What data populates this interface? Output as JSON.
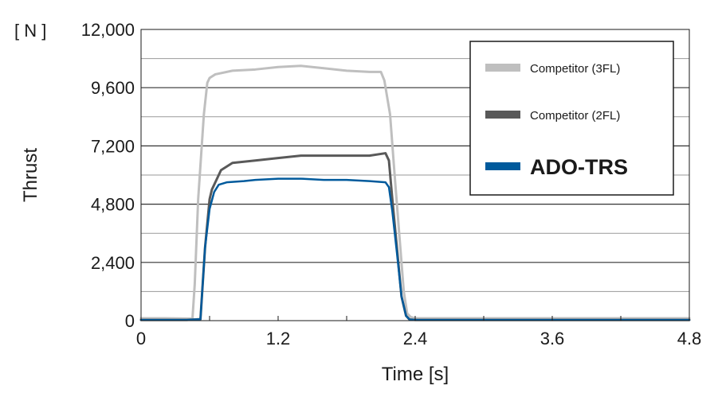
{
  "chart_data": {
    "type": "line",
    "unit_label": "[ N ]",
    "xlabel": "Time [s]",
    "ylabel": "Thrust",
    "xlim": [
      0,
      4.8
    ],
    "ylim": [
      0,
      12000
    ],
    "x_ticks": [
      0,
      1.2,
      2.4,
      3.6,
      4.8
    ],
    "x_tick_labels": [
      "0",
      "1.2",
      "2.4",
      "3.6",
      "4.8"
    ],
    "y_ticks": [
      0,
      2400,
      4800,
      7200,
      9600,
      12000
    ],
    "y_tick_labels": [
      "0",
      "2,400",
      "4,800",
      "7,200",
      "9,600",
      "12,000"
    ],
    "grid": true,
    "legend_position": "top-right",
    "series": [
      {
        "name": "Competitor (3FL)",
        "color": "#bfbfbf",
        "x": [
          0,
          0.2,
          0.45,
          0.47,
          0.5,
          0.55,
          0.58,
          0.6,
          0.65,
          0.8,
          1.0,
          1.2,
          1.4,
          1.6,
          1.8,
          2.0,
          2.1,
          2.13,
          2.18,
          2.22,
          2.27,
          2.3,
          2.33,
          2.36,
          2.4,
          3.0,
          3.6,
          4.2,
          4.8
        ],
        "y": [
          100,
          100,
          80,
          1500,
          5000,
          8500,
          9800,
          10000,
          10150,
          10300,
          10350,
          10450,
          10500,
          10400,
          10300,
          10250,
          10250,
          9900,
          8500,
          6000,
          3000,
          1200,
          300,
          150,
          100,
          100,
          100,
          100,
          100
        ]
      },
      {
        "name": "Competitor (2FL)",
        "color": "#595959",
        "x": [
          0,
          0.2,
          0.4,
          0.52,
          0.56,
          0.6,
          0.62,
          0.66,
          0.7,
          0.8,
          1.0,
          1.2,
          1.4,
          1.6,
          1.8,
          2.0,
          2.14,
          2.17,
          2.2,
          2.24,
          2.28,
          2.32,
          2.35,
          2.4,
          3.0,
          3.6,
          4.2,
          4.8
        ],
        "y": [
          30,
          30,
          30,
          60,
          3000,
          5000,
          5400,
          5800,
          6200,
          6500,
          6600,
          6700,
          6800,
          6800,
          6800,
          6800,
          6900,
          6600,
          5000,
          3000,
          1000,
          200,
          50,
          30,
          30,
          30,
          30,
          30
        ]
      },
      {
        "name": "ADO-TRS",
        "color": "#005a9c",
        "x": [
          0,
          0.2,
          0.4,
          0.52,
          0.56,
          0.6,
          0.64,
          0.68,
          0.75,
          0.9,
          1.0,
          1.2,
          1.4,
          1.6,
          1.8,
          2.0,
          2.14,
          2.17,
          2.2,
          2.24,
          2.28,
          2.32,
          2.35,
          2.4,
          3.0,
          3.6,
          4.2,
          4.8
        ],
        "y": [
          30,
          30,
          30,
          60,
          3000,
          4600,
          5300,
          5600,
          5700,
          5750,
          5800,
          5850,
          5850,
          5800,
          5800,
          5750,
          5700,
          5500,
          4500,
          2800,
          1000,
          200,
          50,
          30,
          30,
          30,
          30,
          30
        ]
      }
    ]
  }
}
